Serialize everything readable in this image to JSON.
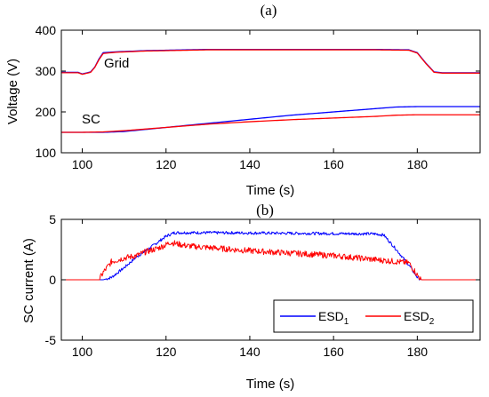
{
  "chart_data": [
    {
      "type": "line",
      "title": "(a)",
      "xlabel": "Time (s)",
      "ylabel": "Voltage (V)",
      "xlim": [
        95,
        195
      ],
      "ylim": [
        100,
        400
      ],
      "xticks": [
        100,
        120,
        140,
        160,
        180
      ],
      "yticks": [
        100,
        200,
        300,
        400
      ],
      "grid": false,
      "annotations": [
        {
          "text": "Grid",
          "x": 110,
          "y": 325
        },
        {
          "text": "SC",
          "x": 99,
          "y": 165
        }
      ],
      "series": [
        {
          "color": "#0000ff",
          "x": [
            95,
            99,
            100,
            102,
            103,
            104,
            105,
            108,
            115,
            130,
            150,
            170,
            178,
            180,
            182,
            184,
            186,
            190,
            195
          ],
          "y": [
            297,
            297,
            293,
            298,
            310,
            330,
            345,
            347,
            350,
            353,
            353,
            353,
            352,
            345,
            320,
            298,
            296,
            296,
            296
          ]
        },
        {
          "color": "#ff0000",
          "x": [
            95,
            99,
            100,
            102,
            103,
            104,
            105,
            108,
            115,
            130,
            150,
            170,
            178,
            180,
            182,
            184,
            186,
            190,
            195
          ],
          "y": [
            296,
            296,
            292,
            297,
            309,
            328,
            343,
            346,
            349,
            352,
            352,
            352,
            351,
            344,
            319,
            297,
            295,
            295,
            295
          ]
        },
        {
          "color": "#0000ff",
          "x": [
            95,
            100,
            105,
            110,
            120,
            130,
            140,
            150,
            160,
            170,
            175,
            180,
            190,
            195
          ],
          "y": [
            150,
            150,
            150,
            152,
            162,
            172,
            182,
            192,
            200,
            208,
            212,
            213,
            213,
            213
          ]
        },
        {
          "color": "#ff0000",
          "x": [
            95,
            100,
            105,
            110,
            120,
            130,
            140,
            150,
            160,
            170,
            175,
            180,
            190,
            195
          ],
          "y": [
            150,
            150,
            151,
            154,
            162,
            170,
            176,
            181,
            185,
            189,
            192,
            193,
            193,
            193
          ]
        }
      ]
    },
    {
      "type": "line",
      "title": "(b)",
      "xlabel": "Time (s)",
      "ylabel": "SC current (A)",
      "xlim": [
        95,
        195
      ],
      "ylim": [
        -5,
        5
      ],
      "xticks": [
        100,
        120,
        140,
        160,
        180
      ],
      "yticks": [
        -5,
        0,
        5
      ],
      "grid": false,
      "legend": {
        "position": "bottom-right",
        "entries": [
          {
            "base": "ESD",
            "sub": "1",
            "color": "#0000ff"
          },
          {
            "base": "ESD",
            "sub": "2",
            "color": "#ff0000"
          }
        ]
      },
      "series": [
        {
          "color": "#0000ff",
          "noise": 0.12,
          "x": [
            95,
            105,
            107,
            110,
            113,
            116,
            118,
            120,
            122,
            130,
            150,
            170,
            172,
            175,
            178,
            180,
            181,
            195
          ],
          "y": [
            0,
            0,
            0.2,
            1.0,
            1.9,
            2.6,
            3.1,
            3.6,
            3.9,
            3.9,
            3.85,
            3.8,
            3.7,
            2.5,
            1.2,
            0.2,
            0,
            0
          ]
        },
        {
          "color": "#ff0000",
          "noise": 0.25,
          "x": [
            95,
            104,
            105,
            107,
            110,
            113,
            115,
            118,
            120,
            121,
            125,
            140,
            160,
            175,
            178,
            180,
            181,
            195
          ],
          "y": [
            0,
            0,
            0.6,
            1.5,
            1.8,
            2.0,
            2.3,
            2.6,
            2.9,
            3.1,
            2.8,
            2.4,
            2.0,
            1.5,
            1.4,
            0.4,
            0,
            0
          ]
        }
      ]
    }
  ]
}
